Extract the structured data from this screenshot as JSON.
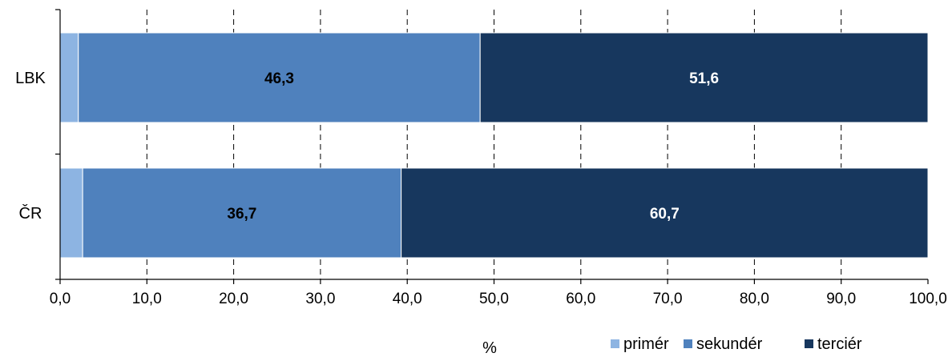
{
  "chart_data": {
    "type": "bar",
    "orientation": "horizontal",
    "stacked": true,
    "categories": [
      "LBK",
      "ČR"
    ],
    "series": [
      {
        "name": "primér",
        "values": [
          2.1,
          2.6
        ],
        "color": "#8db4e2",
        "labels": [
          "",
          ""
        ],
        "label_color": "#000000"
      },
      {
        "name": "sekundér",
        "values": [
          46.3,
          36.7
        ],
        "color": "#4f81bd",
        "labels": [
          "46,3",
          "36,7"
        ],
        "label_color": "#000000"
      },
      {
        "name": "terciér",
        "values": [
          51.6,
          60.7
        ],
        "color": "#17375e",
        "labels": [
          "51,6",
          "60,7"
        ],
        "label_color": "#ffffff"
      }
    ],
    "xlim": [
      0,
      100
    ],
    "xticks": [
      0,
      10,
      20,
      30,
      40,
      50,
      60,
      70,
      80,
      90,
      100
    ],
    "xtick_labels": [
      "0,0",
      "10,0",
      "20,0",
      "30,0",
      "40,0",
      "50,0",
      "60,0",
      "70,0",
      "80,0",
      "90,0",
      "100,0"
    ],
    "xlabel": "%",
    "grid": "vertical dashed",
    "legend_position": "bottom-right"
  }
}
